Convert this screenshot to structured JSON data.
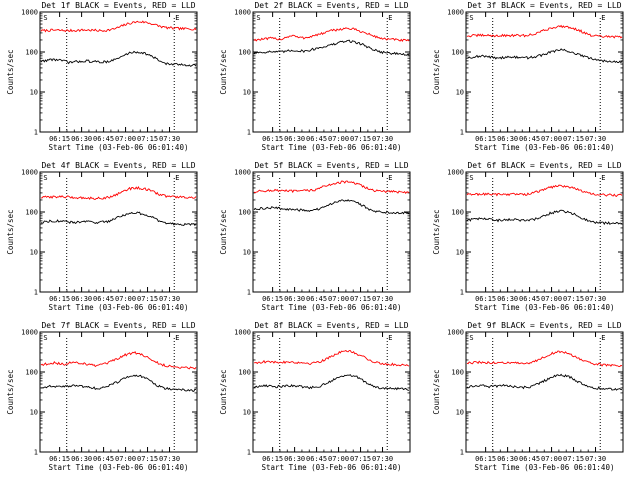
{
  "chart_data": [
    {
      "type": "line",
      "title": "Det 1f BLACK = Events, RED = LLD",
      "xlabel": "Start Time (03-Feb-06 06:01:40)",
      "ylabel": "Counts/sec",
      "xtick_labels": [
        "06:15",
        "06:30",
        "06:45",
        "07:00",
        "07:15",
        "07:30"
      ],
      "ytick_labels": [
        "1",
        "10",
        "100",
        "1000"
      ],
      "ylim": [
        1,
        1000
      ],
      "yscale": "log",
      "markers": [
        "S",
        "E"
      ],
      "series": [
        {
          "color": "#ff0000",
          "values": [
            340,
            345,
            350,
            350,
            345,
            340,
            345,
            350,
            355,
            350,
            345,
            340,
            350,
            370,
            410,
            470,
            520,
            560,
            570,
            550,
            510,
            460,
            420,
            400,
            390,
            385,
            380,
            380,
            378
          ]
        },
        {
          "color": "#000000",
          "values": [
            58,
            62,
            65,
            64,
            60,
            55,
            56,
            58,
            60,
            58,
            57,
            56,
            58,
            62,
            70,
            82,
            95,
            100,
            98,
            90,
            78,
            65,
            55,
            50,
            49,
            48,
            48,
            47,
            47
          ]
        }
      ]
    },
    {
      "type": "line",
      "title": "Det 2f BLACK = Events, RED = LLD",
      "xlabel": "Start Time (03-Feb-06 06:01:40)",
      "ylabel": "Counts/sec",
      "xtick_labels": [
        "06:15",
        "06:30",
        "06:45",
        "07:00",
        "07:15",
        "07:30"
      ],
      "ytick_labels": [
        "1",
        "10",
        "100",
        "1000"
      ],
      "ylim": [
        1,
        1000
      ],
      "yscale": "log",
      "markers": [
        "S",
        "E"
      ],
      "series": [
        {
          "color": "#ff0000",
          "values": [
            200,
            205,
            210,
            220,
            215,
            210,
            240,
            260,
            230,
            225,
            240,
            260,
            280,
            310,
            340,
            360,
            380,
            390,
            370,
            340,
            300,
            270,
            240,
            220,
            210,
            205,
            200,
            195,
            190
          ]
        },
        {
          "color": "#000000",
          "values": [
            95,
            98,
            100,
            102,
            100,
            100,
            105,
            110,
            108,
            105,
            110,
            120,
            130,
            140,
            150,
            165,
            180,
            190,
            180,
            165,
            145,
            125,
            110,
            100,
            95,
            92,
            90,
            88,
            85
          ]
        }
      ]
    },
    {
      "type": "line",
      "title": "Det 3f BLACK = Events, RED = LLD",
      "xlabel": "Start Time (03-Feb-06 06:01:40)",
      "ylabel": "Counts/sec",
      "xtick_labels": [
        "06:15",
        "06:30",
        "06:45",
        "07:00",
        "07:15",
        "07:30"
      ],
      "ytick_labels": [
        "1",
        "10",
        "100",
        "1000"
      ],
      "ylim": [
        1,
        1000
      ],
      "yscale": "log",
      "markers": [
        "S",
        "E"
      ],
      "series": [
        {
          "color": "#ff0000",
          "values": [
            250,
            255,
            260,
            262,
            258,
            255,
            255,
            258,
            260,
            258,
            255,
            260,
            280,
            310,
            350,
            390,
            420,
            440,
            430,
            400,
            360,
            310,
            270,
            250,
            245,
            240,
            240,
            238,
            235
          ]
        },
        {
          "color": "#000000",
          "values": [
            72,
            75,
            78,
            78,
            75,
            72,
            72,
            74,
            75,
            73,
            72,
            72,
            75,
            80,
            88,
            98,
            108,
            112,
            108,
            98,
            88,
            78,
            70,
            65,
            62,
            60,
            60,
            58,
            58
          ]
        }
      ]
    },
    {
      "type": "line",
      "title": "Det 4f BLACK = Events, RED = LLD",
      "xlabel": "Start Time (03-Feb-06 06:01:40)",
      "ylabel": "Counts/sec",
      "xtick_labels": [
        "06:15",
        "06:30",
        "06:45",
        "07:00",
        "07:15",
        "07:30"
      ],
      "ytick_labels": [
        "1",
        "10",
        "100",
        "1000"
      ],
      "ylim": [
        1,
        1000
      ],
      "yscale": "log",
      "markers": [
        "S",
        "E"
      ],
      "series": [
        {
          "color": "#ff0000",
          "values": [
            230,
            235,
            240,
            242,
            240,
            235,
            230,
            228,
            225,
            222,
            220,
            222,
            230,
            250,
            290,
            340,
            380,
            400,
            395,
            370,
            330,
            290,
            260,
            245,
            240,
            235,
            232,
            230,
            228
          ]
        },
        {
          "color": "#000000",
          "values": [
            55,
            58,
            60,
            60,
            58,
            55,
            55,
            56,
            58,
            56,
            55,
            56,
            58,
            65,
            75,
            85,
            92,
            95,
            92,
            85,
            75,
            62,
            55,
            52,
            50,
            50,
            49,
            48,
            48
          ]
        }
      ]
    },
    {
      "type": "line",
      "title": "Det 5f BLACK = Events, RED = LLD",
      "xlabel": "Start Time (03-Feb-06 06:01:40)",
      "ylabel": "Counts/sec",
      "xtick_labels": [
        "06:15",
        "06:30",
        "06:45",
        "07:00",
        "07:15",
        "07:30"
      ],
      "ytick_labels": [
        "1",
        "10",
        "100",
        "1000"
      ],
      "ylim": [
        1,
        1000
      ],
      "yscale": "log",
      "markers": [
        "S",
        "E"
      ],
      "series": [
        {
          "color": "#ff0000",
          "values": [
            320,
            330,
            340,
            345,
            345,
            340,
            335,
            330,
            335,
            340,
            345,
            360,
            400,
            450,
            500,
            540,
            560,
            560,
            530,
            480,
            420,
            370,
            340,
            330,
            325,
            320,
            318,
            315,
            312
          ]
        },
        {
          "color": "#000000",
          "values": [
            115,
            120,
            125,
            128,
            125,
            122,
            118,
            115,
            112,
            110,
            110,
            112,
            120,
            135,
            160,
            185,
            200,
            200,
            185,
            160,
            135,
            115,
            105,
            100,
            98,
            98,
            97,
            96,
            95
          ]
        }
      ]
    },
    {
      "type": "line",
      "title": "Det 6f BLACK = Events, RED = LLD",
      "xlabel": "Start Time (03-Feb-06 06:01:40)",
      "ylabel": "Counts/sec",
      "xtick_labels": [
        "06:15",
        "06:30",
        "06:45",
        "07:00",
        "07:15",
        "07:30"
      ],
      "ytick_labels": [
        "1",
        "10",
        "100",
        "1000"
      ],
      "ylim": [
        1,
        1000
      ],
      "yscale": "log",
      "markers": [
        "S",
        "E"
      ],
      "series": [
        {
          "color": "#ff0000",
          "values": [
            270,
            275,
            280,
            282,
            278,
            275,
            275,
            278,
            280,
            278,
            275,
            280,
            300,
            330,
            370,
            410,
            440,
            450,
            440,
            410,
            370,
            320,
            290,
            275,
            270,
            268,
            265,
            262,
            260
          ]
        },
        {
          "color": "#000000",
          "values": [
            62,
            65,
            68,
            68,
            65,
            62,
            62,
            64,
            65,
            63,
            62,
            62,
            65,
            70,
            80,
            92,
            100,
            105,
            100,
            92,
            80,
            68,
            60,
            56,
            54,
            53,
            52,
            52,
            51
          ]
        }
      ]
    },
    {
      "type": "line",
      "title": "Det 7f BLACK = Events, RED = LLD",
      "xlabel": "Start Time (03-Feb-06 06:01:40)",
      "ylabel": "Counts/sec",
      "xtick_labels": [
        "06:15",
        "06:30",
        "06:45",
        "07:00",
        "07:15",
        "07:30"
      ],
      "ytick_labels": [
        "1",
        "10",
        "100",
        "1000"
      ],
      "ylim": [
        1,
        1000
      ],
      "yscale": "log",
      "markers": [
        "S",
        "E"
      ],
      "series": [
        {
          "color": "#ff0000",
          "values": [
            150,
            160,
            170,
            165,
            155,
            165,
            175,
            170,
            160,
            150,
            145,
            150,
            165,
            190,
            220,
            260,
            290,
            300,
            280,
            240,
            200,
            170,
            150,
            140,
            135,
            132,
            130,
            128,
            126
          ]
        },
        {
          "color": "#000000",
          "values": [
            40,
            42,
            45,
            44,
            42,
            44,
            46,
            45,
            43,
            40,
            39,
            40,
            44,
            50,
            58,
            68,
            78,
            82,
            78,
            68,
            56,
            46,
            40,
            38,
            37,
            36,
            36,
            35,
            35
          ]
        }
      ]
    },
    {
      "type": "line",
      "title": "Det 8f BLACK = Events, RED = LLD",
      "xlabel": "Start Time (03-Feb-06 06:01:40)",
      "ylabel": "Counts/sec",
      "xtick_labels": [
        "06:15",
        "06:30",
        "06:45",
        "07:00",
        "07:15",
        "07:30"
      ],
      "ytick_labels": [
        "1",
        "10",
        "100",
        "1000"
      ],
      "ylim": [
        1,
        1000
      ],
      "yscale": "log",
      "markers": [
        "S",
        "E"
      ],
      "series": [
        {
          "color": "#ff0000",
          "values": [
            170,
            175,
            180,
            178,
            172,
            175,
            180,
            178,
            172,
            168,
            165,
            170,
            185,
            210,
            250,
            290,
            320,
            330,
            310,
            270,
            230,
            195,
            172,
            162,
            158,
            155,
            152,
            150,
            148
          ]
        },
        {
          "color": "#000000",
          "values": [
            42,
            44,
            46,
            45,
            43,
            44,
            46,
            45,
            44,
            42,
            41,
            42,
            45,
            52,
            60,
            70,
            80,
            84,
            80,
            70,
            58,
            48,
            42,
            40,
            39,
            38,
            38,
            37,
            37
          ]
        }
      ]
    },
    {
      "type": "line",
      "title": "Det 9f BLACK = Events, RED = LLD",
      "xlabel": "Start Time (03-Feb-06 06:01:40)",
      "ylabel": "Counts/sec",
      "xtick_labels": [
        "06:15",
        "06:30",
        "06:45",
        "07:00",
        "07:15",
        "07:30"
      ],
      "ytick_labels": [
        "1",
        "10",
        "100",
        "1000"
      ],
      "ylim": [
        1,
        1000
      ],
      "yscale": "log",
      "markers": [
        "S",
        "E"
      ],
      "series": [
        {
          "color": "#ff0000",
          "values": [
            165,
            170,
            175,
            172,
            168,
            170,
            175,
            172,
            168,
            165,
            162,
            165,
            180,
            205,
            240,
            280,
            310,
            320,
            300,
            265,
            225,
            190,
            168,
            158,
            154,
            150,
            148,
            146,
            145
          ]
        },
        {
          "color": "#000000",
          "values": [
            42,
            44,
            46,
            45,
            43,
            44,
            46,
            45,
            44,
            42,
            41,
            42,
            45,
            52,
            60,
            70,
            80,
            84,
            80,
            70,
            58,
            48,
            42,
            40,
            39,
            38,
            38,
            37,
            37
          ]
        }
      ]
    }
  ]
}
